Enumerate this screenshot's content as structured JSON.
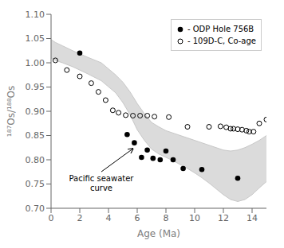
{
  "chart_data": {
    "type": "scatter",
    "xlabel": "Age (Ma)",
    "ylabel": "¹⁸⁷Os/¹⁸⁸Os",
    "xlim": [
      0,
      15
    ],
    "ylim": [
      0.7,
      1.1
    ],
    "xticks": [
      0,
      2,
      4,
      6,
      8,
      10,
      12,
      14
    ],
    "yticks": [
      {
        "value": 0.7,
        "label": "0.70"
      },
      0.75,
      {
        "value": 0.8,
        "label": "0.80"
      },
      0.85,
      {
        "value": 0.9,
        "label": "0.90"
      },
      0.95,
      {
        "value": 1.0,
        "label": "1.00"
      },
      1.05,
      {
        "value": 1.1,
        "label": "1.10"
      }
    ],
    "grid": false,
    "legend": "upper right",
    "series": [
      {
        "type": "band",
        "color": "#c8c8c8",
        "x": [
          0.0,
          0.3,
          0.8,
          1.5,
          2.5,
          3.5,
          4.5,
          5.0,
          5.5,
          6.0,
          6.5,
          7.0,
          7.5,
          8.0,
          8.5,
          9.0,
          9.5,
          10.0,
          10.5,
          11.0,
          11.5,
          12.0,
          12.5,
          13.0,
          13.5,
          14.0,
          14.5,
          15.0
        ],
        "upper": [
          1.048,
          1.042,
          1.035,
          1.025,
          1.012,
          1.0,
          0.975,
          0.96,
          0.94,
          0.916,
          0.895,
          0.877,
          0.868,
          0.86,
          0.855,
          0.85,
          0.845,
          0.84,
          0.835,
          0.83,
          0.825,
          0.82,
          0.818,
          0.82,
          0.825,
          0.832,
          0.84,
          0.85
        ],
        "lower": [
          1.01,
          1.005,
          1.0,
          0.992,
          0.978,
          0.963,
          0.938,
          0.918,
          0.893,
          0.862,
          0.84,
          0.822,
          0.812,
          0.805,
          0.798,
          0.79,
          0.782,
          0.773,
          0.763,
          0.752,
          0.74,
          0.728,
          0.718,
          0.714,
          0.718,
          0.728,
          0.742,
          0.755
        ]
      },
      {
        "type": "scatter",
        "name": "- ODP Hole 756B",
        "marker": "circle",
        "color": "black",
        "x": [
          2.0,
          5.3,
          5.8,
          6.3,
          6.7,
          7.1,
          7.6,
          8.0,
          8.5,
          9.2,
          10.5,
          13.0
        ],
        "values": [
          1.02,
          0.852,
          0.835,
          0.805,
          0.82,
          0.803,
          0.8,
          0.818,
          0.8,
          0.782,
          0.78,
          0.762
        ]
      },
      {
        "type": "scatter",
        "name": "- 109D-C, Co-age",
        "marker": "open circle",
        "color": "black",
        "x": [
          0.3,
          1.1,
          2.0,
          2.8,
          3.3,
          3.8,
          4.3,
          4.7,
          5.2,
          5.7,
          6.2,
          6.7,
          7.2,
          8.2,
          9.5,
          11.0,
          11.8,
          12.2,
          12.5,
          12.7,
          13.0,
          13.3,
          13.6,
          13.8,
          14.1,
          14.5,
          15.0
        ],
        "values": [
          1.005,
          0.985,
          0.972,
          0.958,
          0.94,
          0.923,
          0.902,
          0.897,
          0.892,
          0.891,
          0.891,
          0.891,
          0.889,
          0.888,
          0.868,
          0.868,
          0.869,
          0.867,
          0.864,
          0.864,
          0.863,
          0.862,
          0.86,
          0.858,
          0.858,
          0.875,
          0.883
        ]
      }
    ],
    "annotations": [
      {
        "text": "Pacific seawater\ncurve",
        "xy": [
          5.8,
          0.825
        ],
        "text_xy": [
          3.5,
          0.772
        ]
      }
    ]
  }
}
